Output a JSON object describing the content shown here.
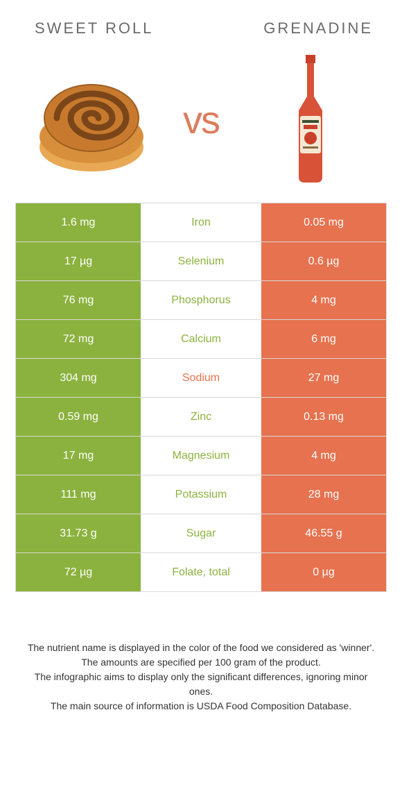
{
  "left_food": "Sweet roll",
  "right_food": "Grenadine",
  "vs_label": "vs",
  "colors": {
    "left": "#8bb23e",
    "right": "#e6724f",
    "title": "#6a6a6a",
    "vs": "#db7d5f",
    "border": "#d8d8d8"
  },
  "rows": [
    {
      "left": "1.6 mg",
      "nutrient": "Iron",
      "right": "0.05 mg",
      "winner": "left"
    },
    {
      "left": "17 µg",
      "nutrient": "Selenium",
      "right": "0.6 µg",
      "winner": "left"
    },
    {
      "left": "76 mg",
      "nutrient": "Phosphorus",
      "right": "4 mg",
      "winner": "left"
    },
    {
      "left": "72 mg",
      "nutrient": "Calcium",
      "right": "6 mg",
      "winner": "left"
    },
    {
      "left": "304 mg",
      "nutrient": "Sodium",
      "right": "27 mg",
      "winner": "right"
    },
    {
      "left": "0.59 mg",
      "nutrient": "Zinc",
      "right": "0.13 mg",
      "winner": "left"
    },
    {
      "left": "17 mg",
      "nutrient": "Magnesium",
      "right": "4 mg",
      "winner": "left"
    },
    {
      "left": "111 mg",
      "nutrient": "Potassium",
      "right": "28 mg",
      "winner": "left"
    },
    {
      "left": "31.73 g",
      "nutrient": "Sugar",
      "right": "46.55 g",
      "winner": "left"
    },
    {
      "left": "72 µg",
      "nutrient": "Folate, total",
      "right": "0 µg",
      "winner": "left"
    }
  ],
  "footer_lines": [
    "The nutrient name is displayed in the color of the food we considered as 'winner'.",
    "The amounts are specified per 100 gram of the product.",
    "The infographic aims to display only the significant differences, ignoring minor ones.",
    "The main source of information is USDA Food Composition Database."
  ]
}
